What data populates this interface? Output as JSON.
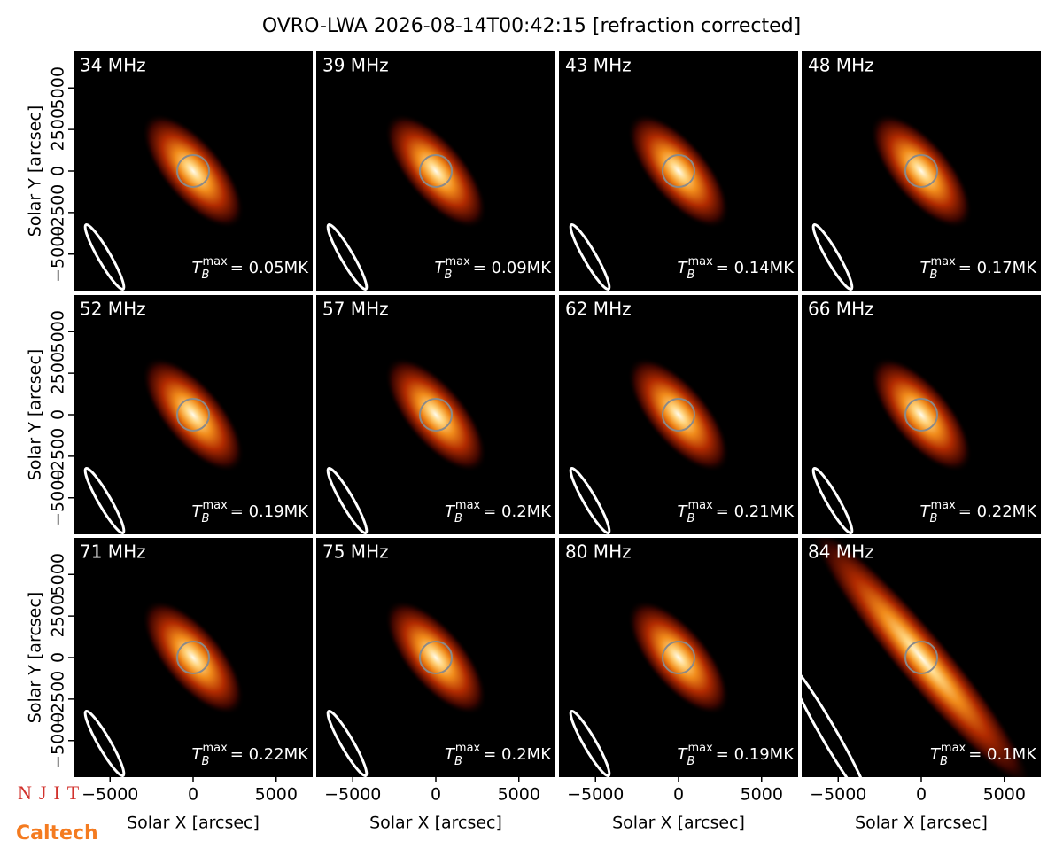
{
  "title": "OVRO-LWA 2026-08-14T00:42:15 [refraction corrected]",
  "tb_symbol": "T",
  "tb_sub": "B",
  "tb_sup": "max",
  "logos": [
    "NJIT",
    "Caltech"
  ],
  "chart_data": [
    {
      "type": "image",
      "annotation": "34 MHz",
      "values": [
        0.05
      ],
      "value_labels": [
        "= 0.05MK"
      ],
      "xlim": [
        -7200,
        7200
      ],
      "ylim": [
        -7200,
        7200
      ],
      "ylabel": "Solar Y [arcsec]",
      "yticks": [
        {
          "value": -5000,
          "label": "−5000"
        },
        {
          "value": -2500,
          "label": "−2500"
        },
        0,
        2500,
        5000
      ]
    },
    {
      "type": "image",
      "annotation": "39 MHz",
      "values": [
        0.09
      ],
      "value_labels": [
        "= 0.09MK"
      ],
      "xlim": [
        -7200,
        7200
      ],
      "ylim": [
        -7200,
        7200
      ]
    },
    {
      "type": "image",
      "annotation": "43 MHz",
      "values": [
        0.14
      ],
      "value_labels": [
        "= 0.14MK"
      ],
      "xlim": [
        -7200,
        7200
      ],
      "ylim": [
        -7200,
        7200
      ]
    },
    {
      "type": "image",
      "annotation": "48 MHz",
      "values": [
        0.17
      ],
      "value_labels": [
        "= 0.17MK"
      ],
      "xlim": [
        -7200,
        7200
      ],
      "ylim": [
        -7200,
        7200
      ]
    },
    {
      "type": "image",
      "annotation": "52 MHz",
      "values": [
        0.19
      ],
      "value_labels": [
        "= 0.19MK"
      ],
      "xlim": [
        -7200,
        7200
      ],
      "ylim": [
        -7200,
        7200
      ],
      "ylabel": "Solar Y [arcsec]",
      "yticks": [
        {
          "value": -5000,
          "label": "−5000"
        },
        {
          "value": -2500,
          "label": "−2500"
        },
        0,
        2500,
        5000
      ]
    },
    {
      "type": "image",
      "annotation": "57 MHz",
      "values": [
        0.2
      ],
      "value_labels": [
        "= 0.2MK"
      ],
      "xlim": [
        -7200,
        7200
      ],
      "ylim": [
        -7200,
        7200
      ]
    },
    {
      "type": "image",
      "annotation": "62 MHz",
      "values": [
        0.21
      ],
      "value_labels": [
        "= 0.21MK"
      ],
      "xlim": [
        -7200,
        7200
      ],
      "ylim": [
        -7200,
        7200
      ]
    },
    {
      "type": "image",
      "annotation": "66 MHz",
      "values": [
        0.22
      ],
      "value_labels": [
        "= 0.22MK"
      ],
      "xlim": [
        -7200,
        7200
      ],
      "ylim": [
        -7200,
        7200
      ]
    },
    {
      "type": "image",
      "annotation": "71 MHz",
      "values": [
        0.22
      ],
      "value_labels": [
        "= 0.22MK"
      ],
      "xlim": [
        -7200,
        7200
      ],
      "ylim": [
        -7200,
        7200
      ],
      "ylabel": "Solar Y [arcsec]",
      "yticks": [
        {
          "value": -5000,
          "label": "−5000"
        },
        {
          "value": -2500,
          "label": "−2500"
        },
        0,
        2500,
        5000
      ],
      "xlabel": "Solar X [arcsec]",
      "xticks": [
        {
          "value": -5000,
          "label": "−5000"
        },
        0,
        5000
      ]
    },
    {
      "type": "image",
      "annotation": "75 MHz",
      "values": [
        0.2
      ],
      "value_labels": [
        "= 0.2MK"
      ],
      "xlim": [
        -7200,
        7200
      ],
      "ylim": [
        -7200,
        7200
      ],
      "xlabel": "Solar X [arcsec]",
      "xticks": [
        {
          "value": -5000,
          "label": "−5000"
        },
        0,
        5000
      ]
    },
    {
      "type": "image",
      "annotation": "80 MHz",
      "values": [
        0.19
      ],
      "value_labels": [
        "= 0.19MK"
      ],
      "xlim": [
        -7200,
        7200
      ],
      "ylim": [
        -7200,
        7200
      ],
      "xlabel": "Solar X [arcsec]",
      "xticks": [
        {
          "value": -5000,
          "label": "−5000"
        },
        0,
        5000
      ]
    },
    {
      "type": "image",
      "annotation": "84 MHz",
      "values": [
        0.1
      ],
      "value_labels": [
        "= 0.1MK"
      ],
      "xlim": [
        -7200,
        7200
      ],
      "ylim": [
        -7200,
        7200
      ],
      "xlabel": "Solar X [arcsec]",
      "xticks": [
        {
          "value": -5000,
          "label": "−5000"
        },
        0,
        5000
      ]
    }
  ]
}
